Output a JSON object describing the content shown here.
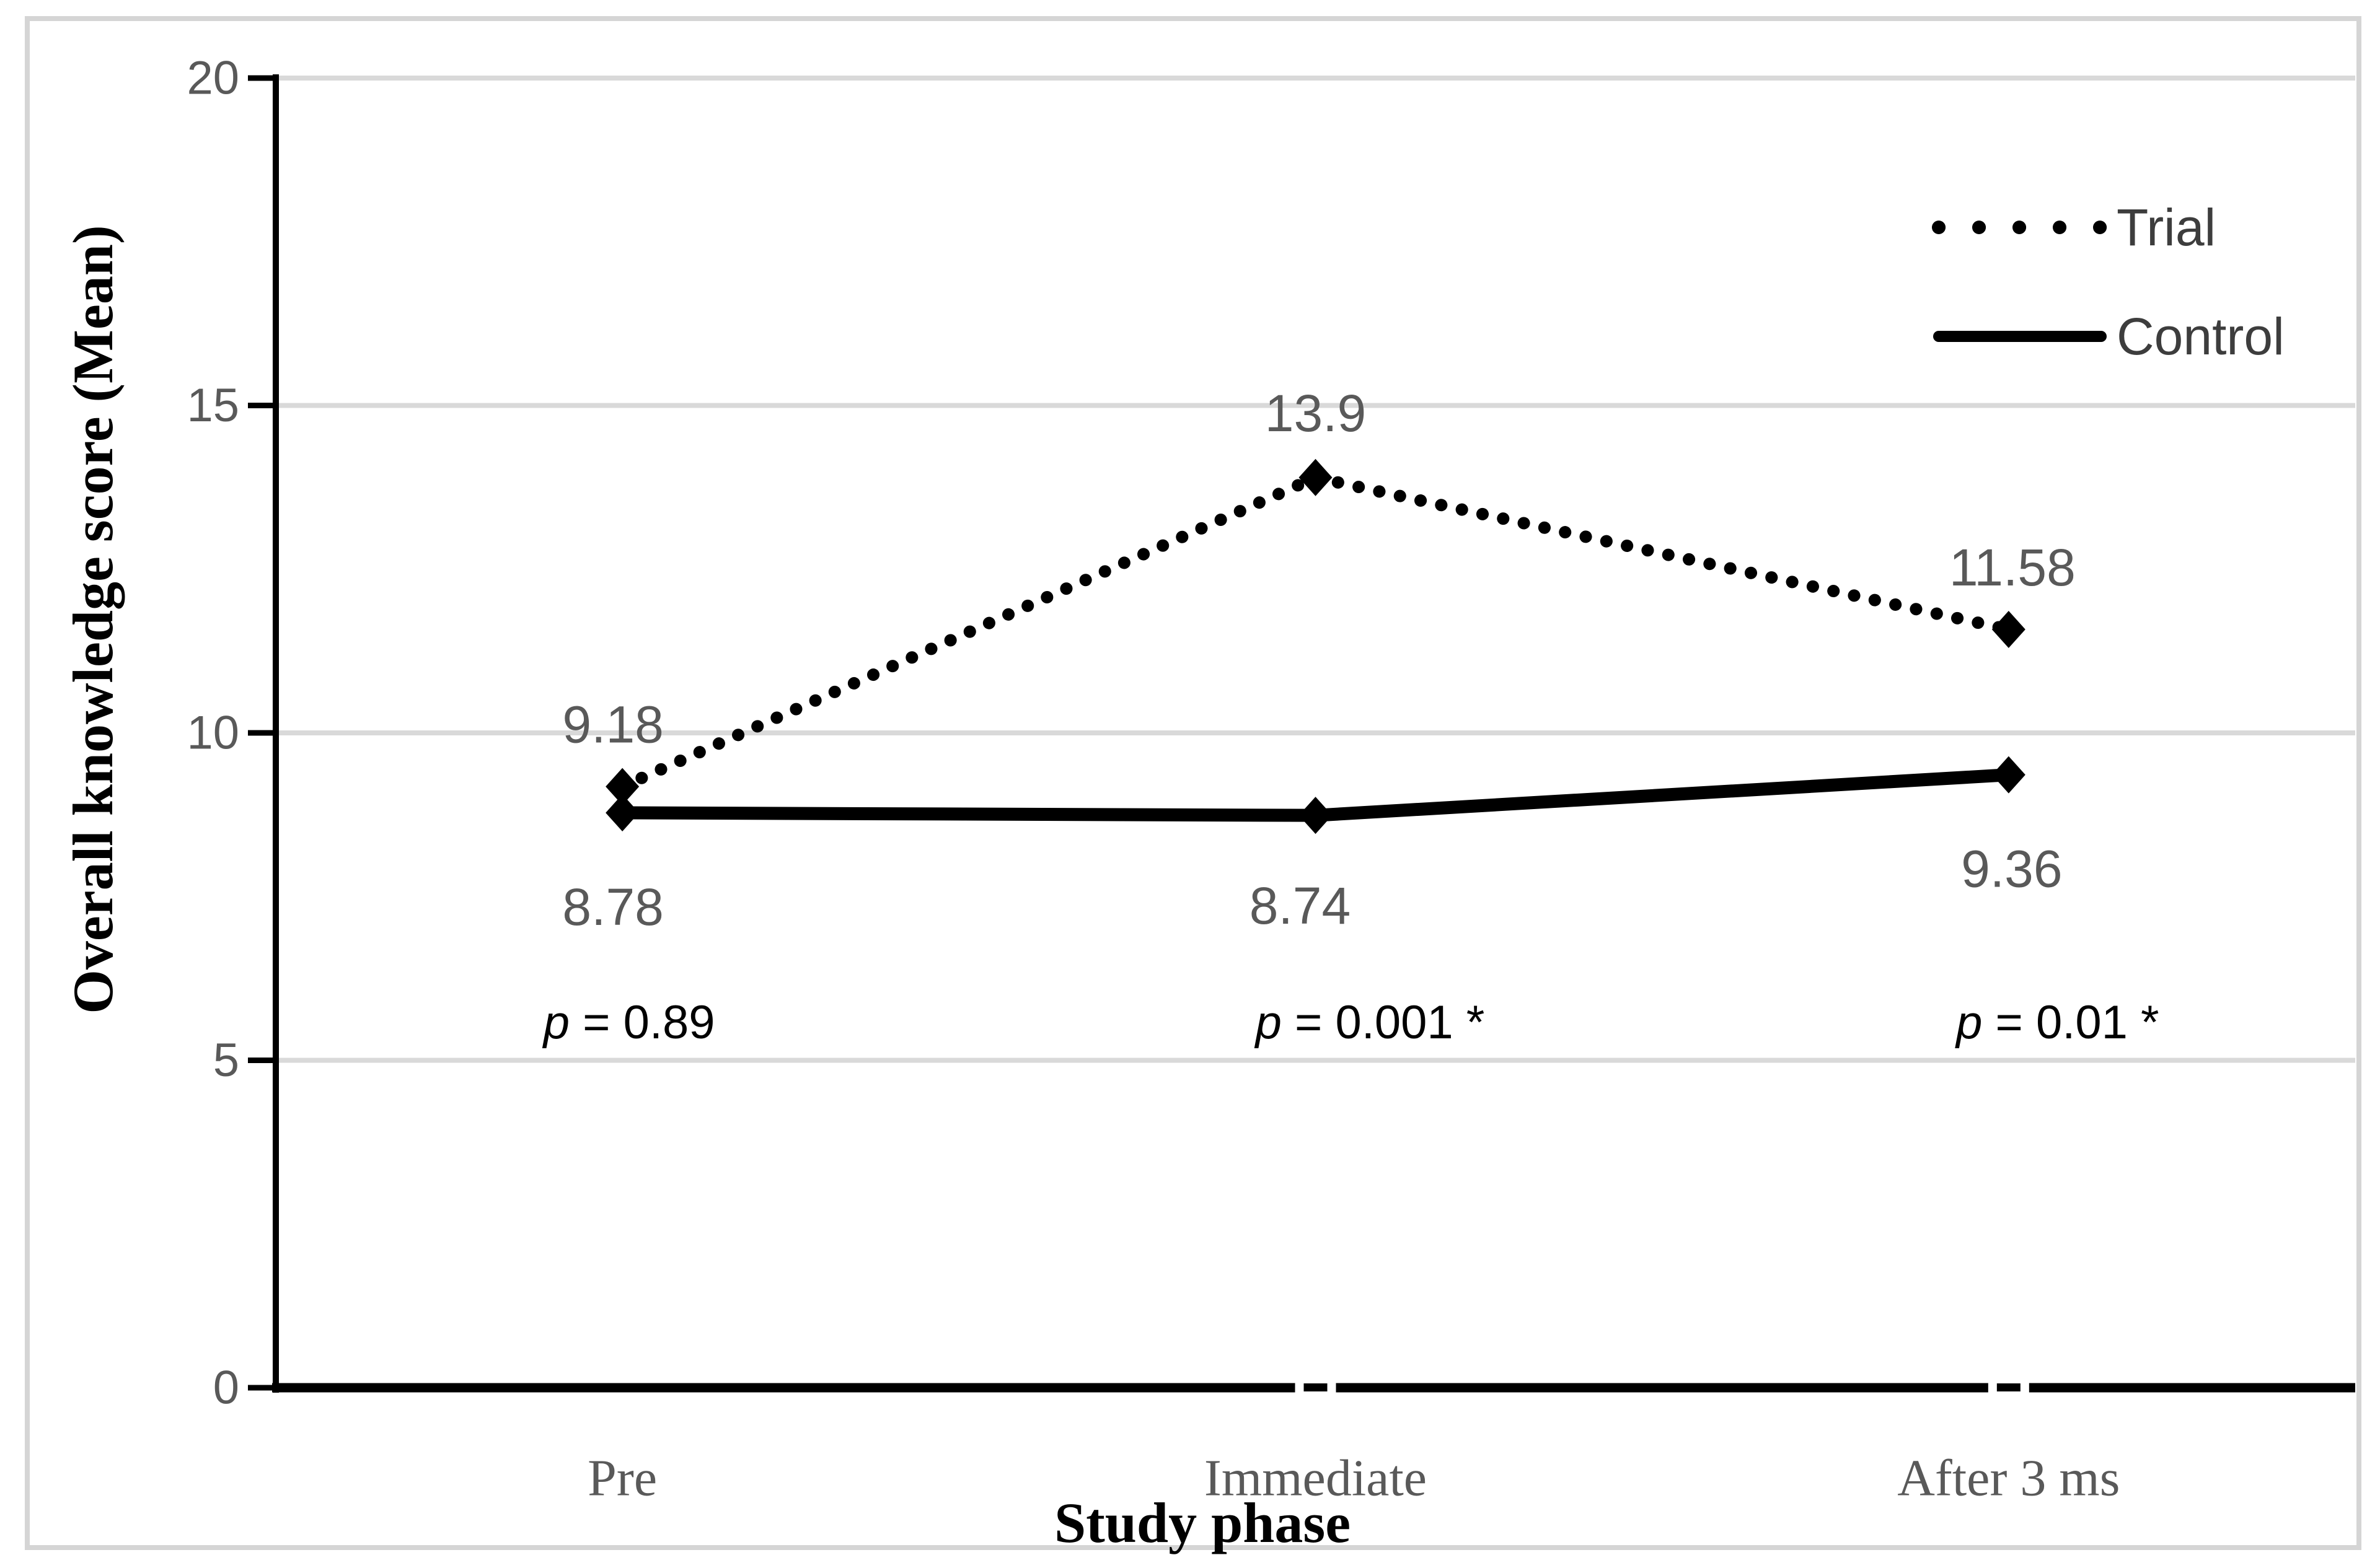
{
  "chart_data": {
    "type": "line",
    "title": "",
    "categories": [
      "Pre",
      "Immediate",
      "After 3 ms"
    ],
    "series": [
      {
        "name": "Trial",
        "style": "dotted",
        "marker": "diamond",
        "values": [
          9.18,
          13.9,
          11.58
        ],
        "data_labels": [
          "9.18",
          "13.9",
          "11.58"
        ]
      },
      {
        "name": "Control",
        "style": "solid",
        "marker": "diamond",
        "values": [
          8.78,
          8.74,
          9.36
        ],
        "data_labels": [
          "8.78",
          "8.74",
          "9.36"
        ]
      }
    ],
    "annotations": [
      {
        "text": "p = 0.89",
        "significant": false
      },
      {
        "text": "p = 0.001 *",
        "significant": true
      },
      {
        "text": "p = 0.01 *",
        "significant": true
      }
    ],
    "xlabel": "Study phase",
    "ylabel": "Overall knowledge score (Mean)",
    "ylim": [
      0,
      20
    ],
    "yticks": [
      0,
      5,
      10,
      15,
      20
    ],
    "grid": "horizontal-major",
    "legend_position": "top-right",
    "colors": {
      "series_line": "#000000",
      "gridline": "#d9d9d9",
      "axis": "#000000",
      "tick_label": "#595959",
      "data_label": "#595959",
      "category_label": "#595959",
      "annotation_text": "#000000",
      "legend_text": "#3d3d3d",
      "figure_border": "#d5d5d5",
      "background": "#ffffff"
    }
  }
}
